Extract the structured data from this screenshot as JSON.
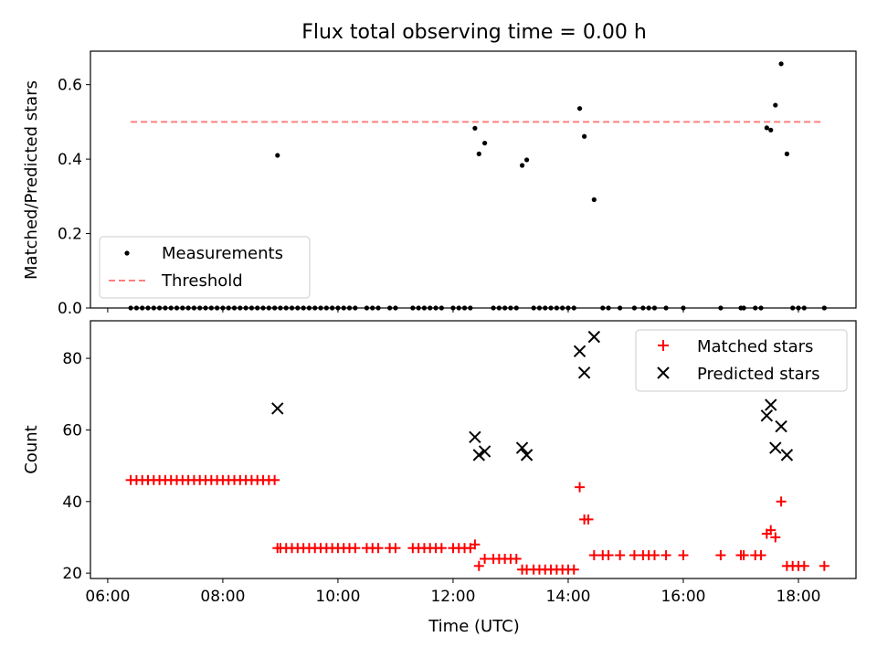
{
  "chart_data": [
    {
      "type": "scatter",
      "title": "Flux total observing time = 0.00 h",
      "xlabel": "",
      "ylabel": "Matched/Predicted stars",
      "x_unit": "hours UTC",
      "xlim": [
        5.7,
        19.0
      ],
      "ylim": [
        0,
        0.69
      ],
      "yticks": [
        0.0,
        0.2,
        0.4,
        0.6
      ],
      "ytick_labels": [
        "0.0",
        "0.2",
        "0.4",
        "0.6"
      ],
      "legend": {
        "placement": "lower-left",
        "entries": [
          "Measurements",
          "Threshold"
        ]
      },
      "series": [
        {
          "name": "Measurements",
          "marker": "dot",
          "color": "#000000",
          "x": [
            6.4,
            6.5,
            6.6,
            6.7,
            6.8,
            6.9,
            7.0,
            7.1,
            7.2,
            7.3,
            7.4,
            7.5,
            7.6,
            7.7,
            7.8,
            7.9,
            8.0,
            8.1,
            8.2,
            8.3,
            8.4,
            8.5,
            8.6,
            8.7,
            8.8,
            8.9,
            8.95,
            9.0,
            9.1,
            9.2,
            9.3,
            9.4,
            9.5,
            9.6,
            9.7,
            9.8,
            9.9,
            10.0,
            10.1,
            10.2,
            10.3,
            10.5,
            10.6,
            10.7,
            10.9,
            11.0,
            11.3,
            11.4,
            11.5,
            11.6,
            11.7,
            11.8,
            12.0,
            12.1,
            12.2,
            12.3,
            12.38,
            12.45,
            12.55,
            12.7,
            12.8,
            12.9,
            13.0,
            13.1,
            13.2,
            13.28,
            13.4,
            13.5,
            13.6,
            13.7,
            13.8,
            13.9,
            14.0,
            14.1,
            14.2,
            14.28,
            14.45,
            14.6,
            14.7,
            14.9,
            15.15,
            15.3,
            15.4,
            15.5,
            15.7,
            16.0,
            16.65,
            17.0,
            17.05,
            17.25,
            17.35,
            17.45,
            17.52,
            17.6,
            17.7,
            17.8,
            17.9,
            18.0,
            18.1,
            18.45
          ],
          "y": [
            0,
            0,
            0,
            0,
            0,
            0,
            0,
            0,
            0,
            0,
            0,
            0,
            0,
            0,
            0,
            0,
            0,
            0,
            0,
            0,
            0,
            0,
            0,
            0,
            0,
            0,
            0.41,
            0,
            0,
            0,
            0,
            0,
            0,
            0,
            0,
            0,
            0,
            0,
            0,
            0,
            0,
            0,
            0,
            0,
            0,
            0,
            0,
            0,
            0,
            0,
            0,
            0,
            0,
            0,
            0,
            0,
            0.483,
            0.414,
            0.443,
            0,
            0,
            0,
            0,
            0,
            0.383,
            0.398,
            0,
            0,
            0,
            0,
            0,
            0,
            0,
            0,
            0.536,
            0.461,
            0.291,
            0,
            0,
            0,
            0,
            0,
            0,
            0,
            0,
            0,
            0,
            0,
            0,
            0,
            0,
            0.484,
            0.478,
            0.545,
            0.656,
            0.414,
            0,
            0,
            0,
            0
          ]
        },
        {
          "name": "Threshold",
          "style": "dashed",
          "color": "#ff7f7f",
          "x": [
            6.4,
            18.4
          ],
          "y": [
            0.5,
            0.5
          ]
        }
      ]
    },
    {
      "type": "scatter",
      "title": "",
      "xlabel": "Time (UTC)",
      "ylabel": "Count",
      "x_unit": "hours UTC",
      "xlim": [
        5.7,
        19.0
      ],
      "ylim": [
        18.5,
        90.5
      ],
      "xticks": [
        6,
        8,
        10,
        12,
        14,
        16,
        18
      ],
      "xtick_labels": [
        "06:00",
        "08:00",
        "10:00",
        "12:00",
        "14:00",
        "16:00",
        "18:00"
      ],
      "yticks": [
        20,
        40,
        60,
        80
      ],
      "ytick_labels": [
        "20",
        "40",
        "60",
        "80"
      ],
      "legend": {
        "placement": "upper-right",
        "entries": [
          "Matched stars",
          "Predicted stars"
        ]
      },
      "series": [
        {
          "name": "Matched stars",
          "marker": "plus",
          "color": "#ff0000",
          "x": [
            6.4,
            6.5,
            6.6,
            6.7,
            6.8,
            6.9,
            7.0,
            7.1,
            7.2,
            7.3,
            7.4,
            7.5,
            7.6,
            7.7,
            7.8,
            7.9,
            8.0,
            8.1,
            8.2,
            8.3,
            8.4,
            8.5,
            8.6,
            8.7,
            8.8,
            8.9,
            8.95,
            9.0,
            9.1,
            9.2,
            9.3,
            9.4,
            9.5,
            9.6,
            9.7,
            9.8,
            9.9,
            10.0,
            10.1,
            10.2,
            10.3,
            10.5,
            10.6,
            10.7,
            10.9,
            11.0,
            11.3,
            11.4,
            11.5,
            11.6,
            11.7,
            11.8,
            12.0,
            12.1,
            12.2,
            12.3,
            12.38,
            12.45,
            12.55,
            12.7,
            12.8,
            12.9,
            13.0,
            13.1,
            13.2,
            13.28,
            13.4,
            13.5,
            13.6,
            13.7,
            13.8,
            13.9,
            14.0,
            14.1,
            14.2,
            14.28,
            14.35,
            14.45,
            14.6,
            14.7,
            14.9,
            15.15,
            15.3,
            15.4,
            15.5,
            15.7,
            16.0,
            16.65,
            17.0,
            17.05,
            17.25,
            17.35,
            17.45,
            17.52,
            17.6,
            17.7,
            17.8,
            17.9,
            18.0,
            18.1,
            18.45
          ],
          "y": [
            46,
            46,
            46,
            46,
            46,
            46,
            46,
            46,
            46,
            46,
            46,
            46,
            46,
            46,
            46,
            46,
            46,
            46,
            46,
            46,
            46,
            46,
            46,
            46,
            46,
            46,
            27,
            27,
            27,
            27,
            27,
            27,
            27,
            27,
            27,
            27,
            27,
            27,
            27,
            27,
            27,
            27,
            27,
            27,
            27,
            27,
            27,
            27,
            27,
            27,
            27,
            27,
            27,
            27,
            27,
            27,
            28,
            22,
            24,
            24,
            24,
            24,
            24,
            24,
            21,
            21,
            21,
            21,
            21,
            21,
            21,
            21,
            21,
            21,
            44,
            35,
            35,
            25,
            25,
            25,
            25,
            25,
            25,
            25,
            25,
            25,
            25,
            25,
            25,
            25,
            25,
            25,
            31,
            32,
            30,
            40,
            22,
            22,
            22,
            22,
            22
          ]
        },
        {
          "name": "Predicted stars",
          "marker": "x",
          "color": "#000000",
          "x": [
            8.95,
            12.38,
            12.45,
            12.55,
            13.2,
            13.28,
            14.2,
            14.28,
            14.45,
            17.45,
            17.52,
            17.6,
            17.7,
            17.8
          ],
          "y": [
            66,
            58,
            53,
            54,
            55,
            53,
            82,
            76,
            86,
            64,
            67,
            55,
            61,
            53
          ]
        }
      ]
    }
  ]
}
